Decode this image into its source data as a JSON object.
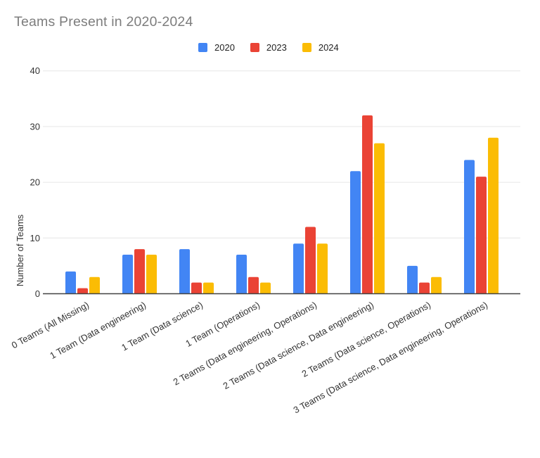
{
  "chart_data": {
    "type": "bar",
    "title": "Teams Present in 2020-2024",
    "xlabel": "",
    "ylabel": "Number of Teams",
    "ylim": [
      0,
      40
    ],
    "yticks": [
      0,
      10,
      20,
      30,
      40
    ],
    "grid": true,
    "legend_position": "top-center",
    "categories": [
      "0 Teams (All Missing)",
      "1 Team (Data engineering)",
      "1 Team (Data science)",
      "1 Team (Operations)",
      "2 Teams (Data engineering, Operations)",
      "2 Teams (Data science, Data engineering)",
      "2 Teams (Data science, Operations)",
      "3 Teams (Data science, Data engineering, Operations)"
    ],
    "series": [
      {
        "name": "2020",
        "color": "#4285F4",
        "values": [
          4,
          7,
          8,
          7,
          9,
          22,
          5,
          24
        ]
      },
      {
        "name": "2023",
        "color": "#EA4335",
        "values": [
          1,
          8,
          2,
          3,
          12,
          32,
          2,
          21
        ]
      },
      {
        "name": "2024",
        "color": "#FBBC04",
        "values": [
          3,
          7,
          2,
          2,
          9,
          27,
          3,
          28
        ]
      }
    ]
  },
  "colors": {
    "title_text": "#7d7d7d",
    "axis_line": "#424242",
    "gridline": "#e6e6e6",
    "tick_text": "#333333",
    "category_text": "#333333",
    "background": "#ffffff"
  }
}
